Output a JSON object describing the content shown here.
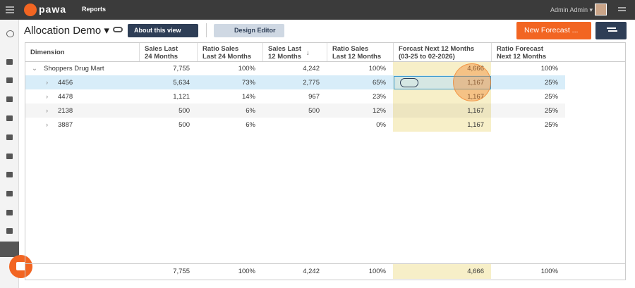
{
  "topbar": {
    "app": "pawa",
    "menu": "Reports",
    "user": "Admin Admin"
  },
  "toolbar": {
    "title": "Allocation Demo",
    "about_button": "About this view",
    "design_button": "Design Editor",
    "new_button": "New Forecast ..."
  },
  "table": {
    "headers": [
      [
        "Dimension"
      ],
      [
        "Sales Last",
        "24 Months"
      ],
      [
        "Ratio Sales",
        "Last 24 Months"
      ],
      [
        "Sales Last",
        "12 Months"
      ],
      [
        "Ratio Sales",
        "Last 12 Months"
      ],
      [
        "Forcast Next 12 Months",
        "(03-25 to 02-2026)"
      ],
      [
        "Ratio Forecast",
        "Next 12 Months"
      ]
    ],
    "sort_indicator": "↓",
    "rows": [
      [
        "Shoppers Drug Mart",
        "7,755",
        "100%",
        "4,242",
        "100%",
        "4,666",
        "100%"
      ],
      [
        "4456",
        "5,634",
        "73%",
        "2,775",
        "65%",
        "1,167",
        "25%"
      ],
      [
        "4478",
        "1,121",
        "14%",
        "967",
        "23%",
        "1,167",
        "25%"
      ],
      [
        "2138",
        "500",
        "6%",
        "500",
        "12%",
        "1,167",
        "25%"
      ],
      [
        "3887",
        "500",
        "6%",
        null,
        "0%",
        "1,167",
        "25%"
      ]
    ],
    "footer": [
      null,
      "7,755",
      "100%",
      "4,242",
      "100%",
      "4,666",
      "100%"
    ]
  }
}
